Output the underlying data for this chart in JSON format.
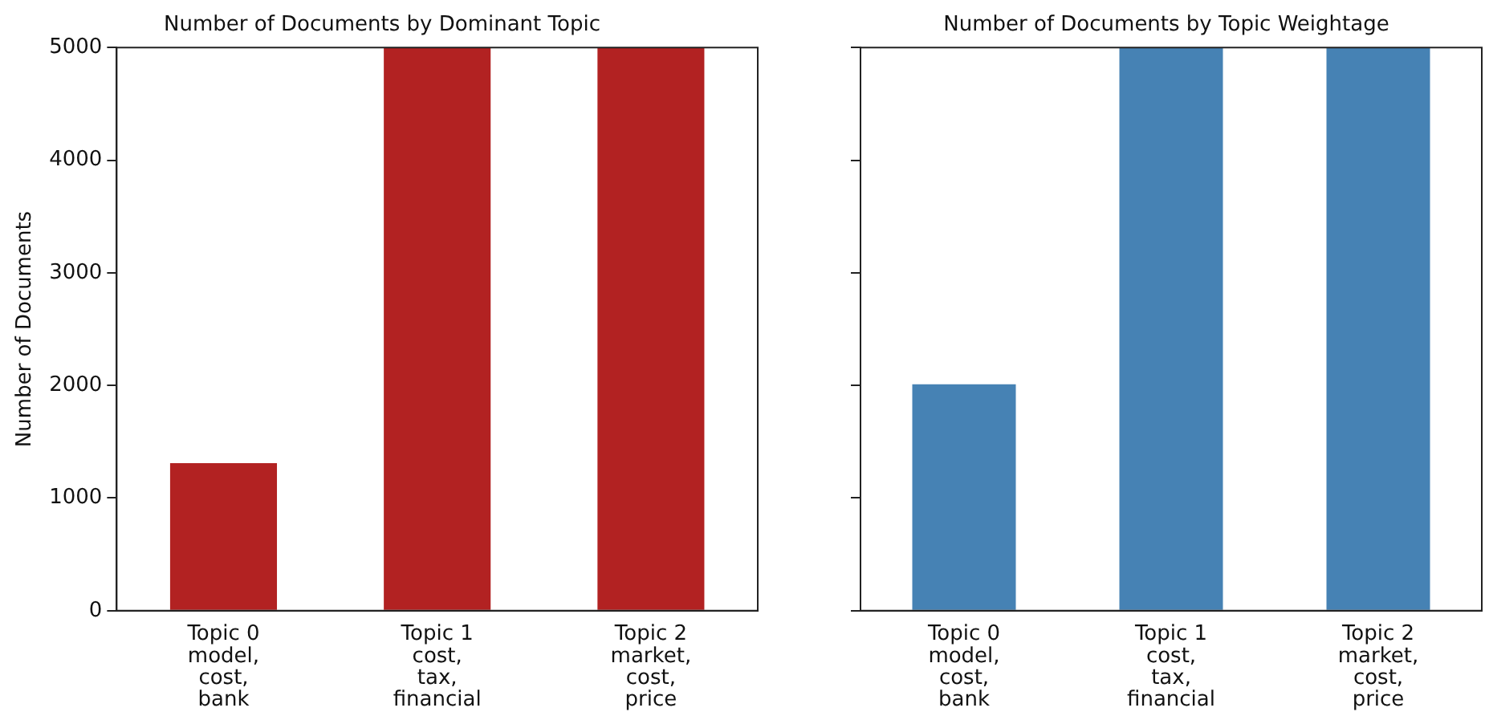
{
  "chart_data": [
    {
      "type": "bar",
      "title": "Number of Documents by Dominant Topic",
      "ylabel": "Number of Documents",
      "categories": [
        "Topic 0\nmodel,\ncost,\nbank",
        "Topic 1\ncost,\ntax,\nfinancial",
        "Topic 2\nmarket,\ncost,\nprice"
      ],
      "values": [
        1310,
        5000,
        5000
      ],
      "color": "#b22222",
      "ylim": [
        0,
        5000
      ],
      "yticks": [
        0,
        1000,
        2000,
        3000,
        4000,
        5000
      ],
      "grid": false,
      "legend": false
    },
    {
      "type": "bar",
      "title": "Number of Documents by Topic Weightage",
      "categories": [
        "Topic 0\nmodel,\ncost,\nbank",
        "Topic 1\ncost,\ntax,\nfinancial",
        "Topic 2\nmarket,\ncost,\nprice"
      ],
      "values": [
        2010,
        5000,
        5000
      ],
      "color": "#4682b4",
      "ylim": [
        0,
        5000
      ],
      "yticks": [
        0,
        1000,
        2000,
        3000,
        4000,
        5000
      ],
      "grid": false,
      "legend": false,
      "tick_labels": "x"
    }
  ]
}
